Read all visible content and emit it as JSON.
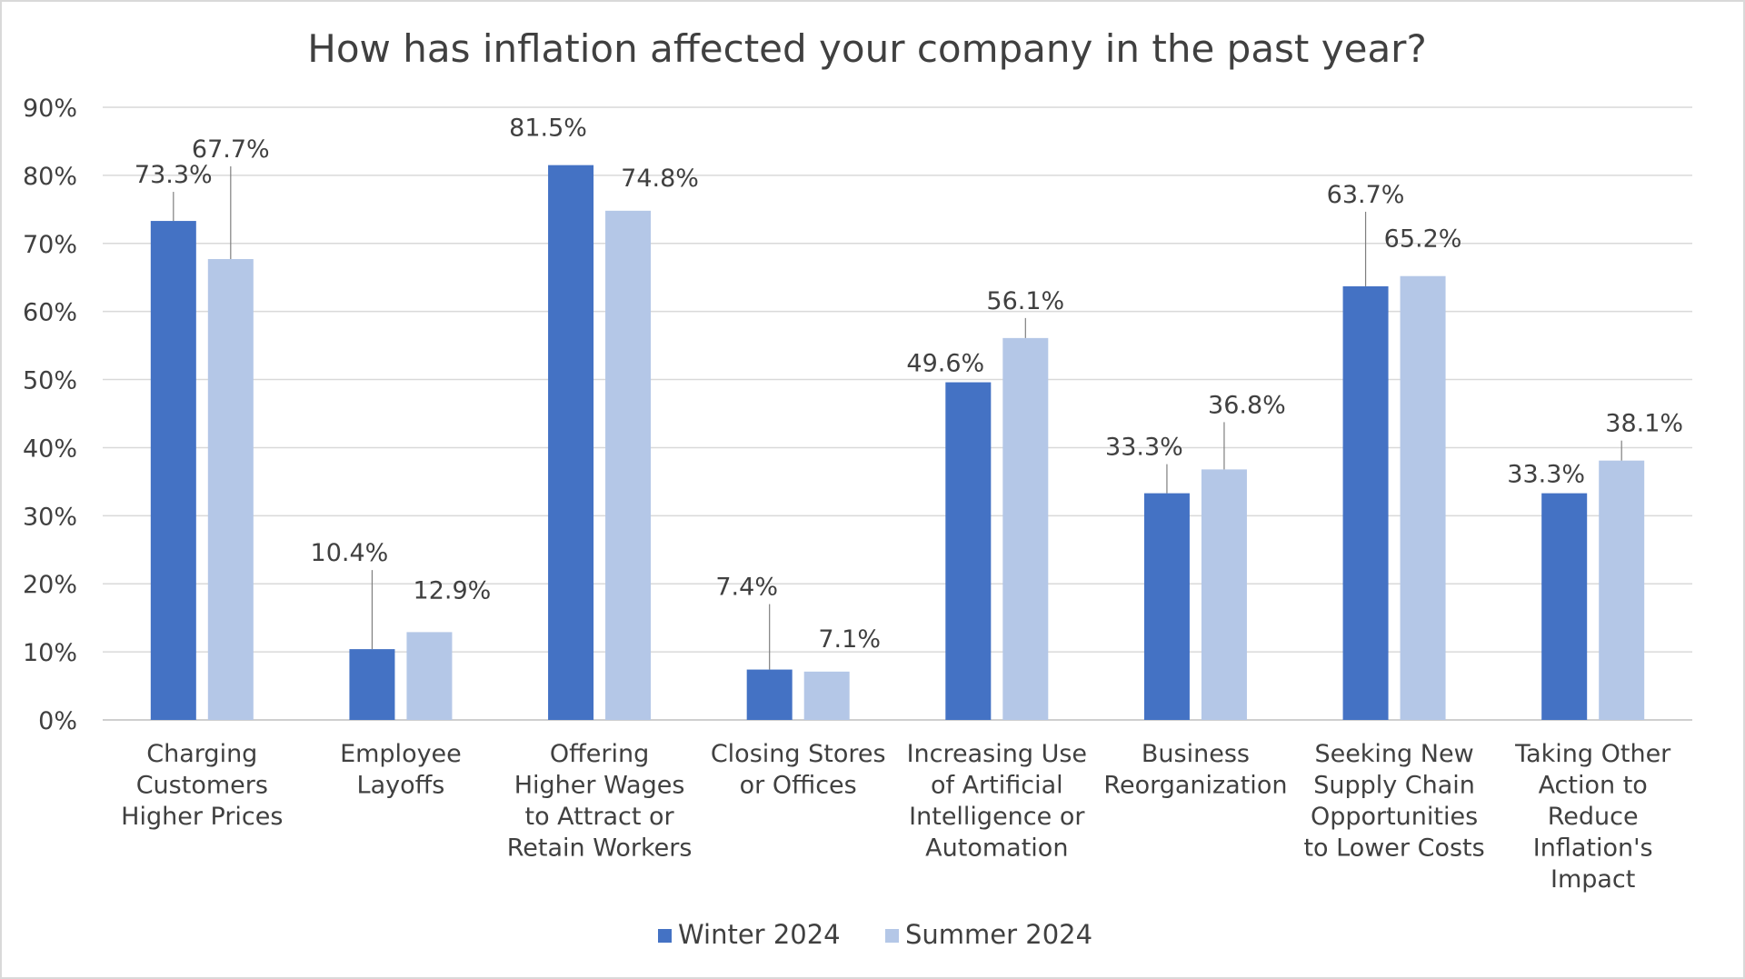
{
  "chart_data": {
    "type": "bar",
    "title": "How has inflation affected your company in the past year?",
    "xlabel": "",
    "ylabel": "",
    "ylim": [
      0,
      90
    ],
    "yticks": [
      0,
      10,
      20,
      30,
      40,
      50,
      60,
      70,
      80,
      90
    ],
    "ytick_labels": [
      "0%",
      "10%",
      "20%",
      "30%",
      "40%",
      "50%",
      "60%",
      "70%",
      "80%",
      "90%"
    ],
    "grid": true,
    "legend_position": "bottom",
    "categories": [
      [
        "Charging",
        "Customers",
        "Higher Prices"
      ],
      [
        "Employee",
        "Layoffs"
      ],
      [
        "Offering",
        "Higher Wages",
        "to Attract or",
        "Retain Workers"
      ],
      [
        "Closing Stores",
        "or Offices"
      ],
      [
        "Increasing Use",
        "of Artificial",
        "Intelligence or",
        "Automation"
      ],
      [
        "Business",
        "Reorganization"
      ],
      [
        "Seeking New",
        "Supply Chain",
        "Opportunities",
        "to Lower Costs"
      ],
      [
        "Taking Other",
        "Action to",
        "Reduce",
        "Inflation's",
        "Impact"
      ]
    ],
    "series": [
      {
        "name": "Winter 2024",
        "color": "#4472c4",
        "values": [
          73.3,
          10.4,
          81.5,
          7.4,
          49.6,
          33.3,
          63.7,
          33.3
        ],
        "labels": [
          "73.3%",
          "10.4%",
          "81.5%",
          "7.4%",
          "49.6%",
          "33.3%",
          "63.7%",
          "33.3%"
        ]
      },
      {
        "name": "Summer 2024",
        "color": "#b4c7e7",
        "values": [
          67.7,
          12.9,
          74.8,
          7.1,
          56.1,
          36.8,
          65.2,
          38.1
        ],
        "labels": [
          "67.7%",
          "12.9%",
          "74.8%",
          "7.1%",
          "56.1%",
          "36.8%",
          "65.2%",
          "38.1%"
        ]
      }
    ]
  }
}
